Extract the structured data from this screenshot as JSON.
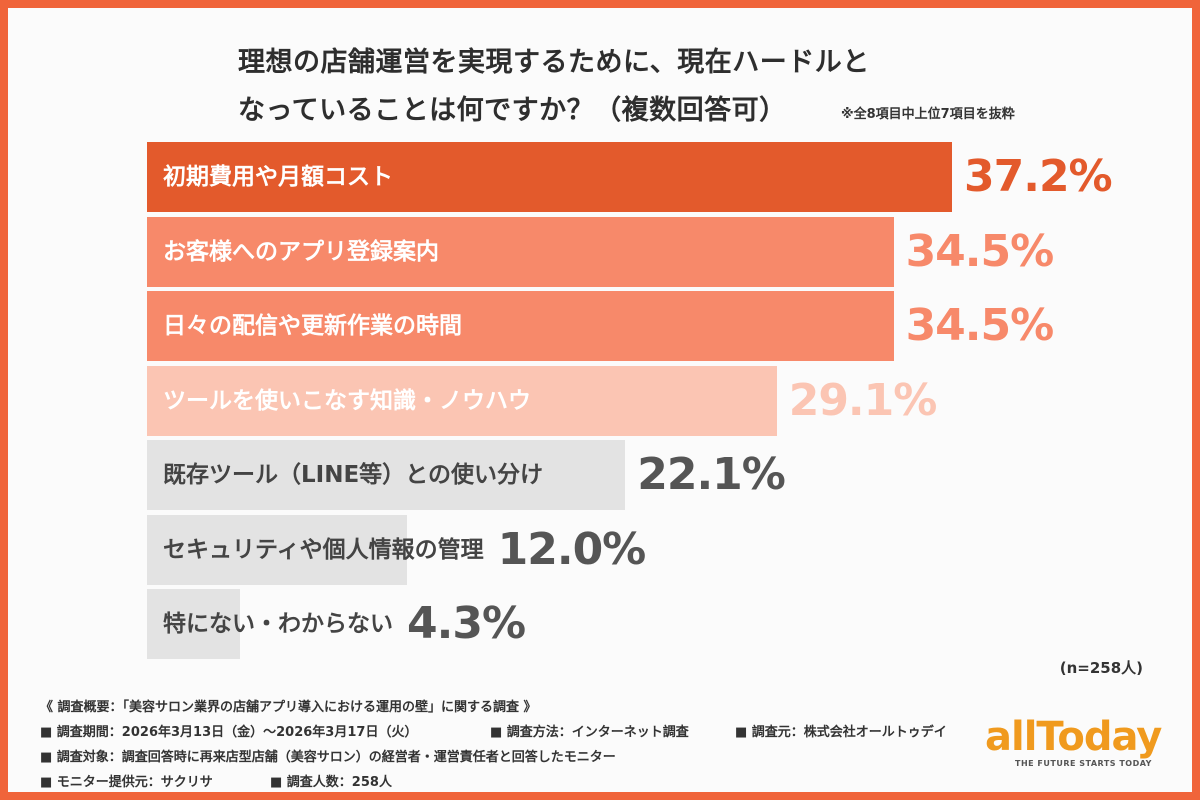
{
  "title_line1": "理想の店舗運営を実現するために、現在ハードルと",
  "title_line2": "なっていることは何ですか？（複数回答可）",
  "note": "※全8項目中上位7項目を抜粋",
  "n_label": "(n=258人)",
  "chart_data": {
    "type": "bar",
    "orientation": "horizontal",
    "title": "理想の店舗運営を実現するために、現在ハードルとなっていることは何ですか？（複数回答可）",
    "categories": [
      "初期費用や月額コスト",
      "お客様へのアプリ登録案内",
      "日々の配信や更新作業の時間",
      "ツールを使いこなす知識・ノウハウ",
      "既存ツール（LINE等）との使い分け",
      "セキュリティや個人情報の管理",
      "特にない・わからない"
    ],
    "values": [
      37.2,
      34.5,
      34.5,
      29.1,
      22.1,
      12.0,
      4.3
    ],
    "value_labels": [
      "37.2%",
      "34.5%",
      "34.5%",
      "29.1%",
      "22.1%",
      "12.0%",
      "4.3%"
    ],
    "unit": "%",
    "xlim": [
      0,
      40
    ],
    "bar_colors": [
      "#e35a2c",
      "#f7896a",
      "#f7896a",
      "#fbc5b3",
      "#e3e3e3",
      "#e3e3e3",
      "#e3e3e3"
    ],
    "label_colors": [
      "#ffffff",
      "#ffffff",
      "#ffffff",
      "#ffffff",
      "#444444",
      "#444444",
      "#444444"
    ],
    "value_colors": [
      "#e35a2c",
      "#f7896a",
      "#f7896a",
      "#fbc5b3",
      "#555555",
      "#555555",
      "#555555"
    ]
  },
  "footer": {
    "survey_title": "《 調査概要：「美容サロン業界の店舗アプリ導入における運用の壁」に関する調査 》",
    "period": "■ 調査期間：2026年3月13日（金）〜2026年3月17日（火）",
    "method": "■ 調査方法：インターネット調査",
    "source": "■ 調査元：株式会社オールトゥデイ",
    "target": "■ 調査対象：調査回答時に再来店型店舗（美容サロン）の経営者・運営責任者と回答したモニター",
    "monitor": "■ モニター提供元：サクリサ",
    "count": "■ 調査人数：258人"
  },
  "logo": {
    "name": "allToday",
    "tagline": "THE FUTURE STARTS TODAY",
    "color": "#f09a1e"
  }
}
